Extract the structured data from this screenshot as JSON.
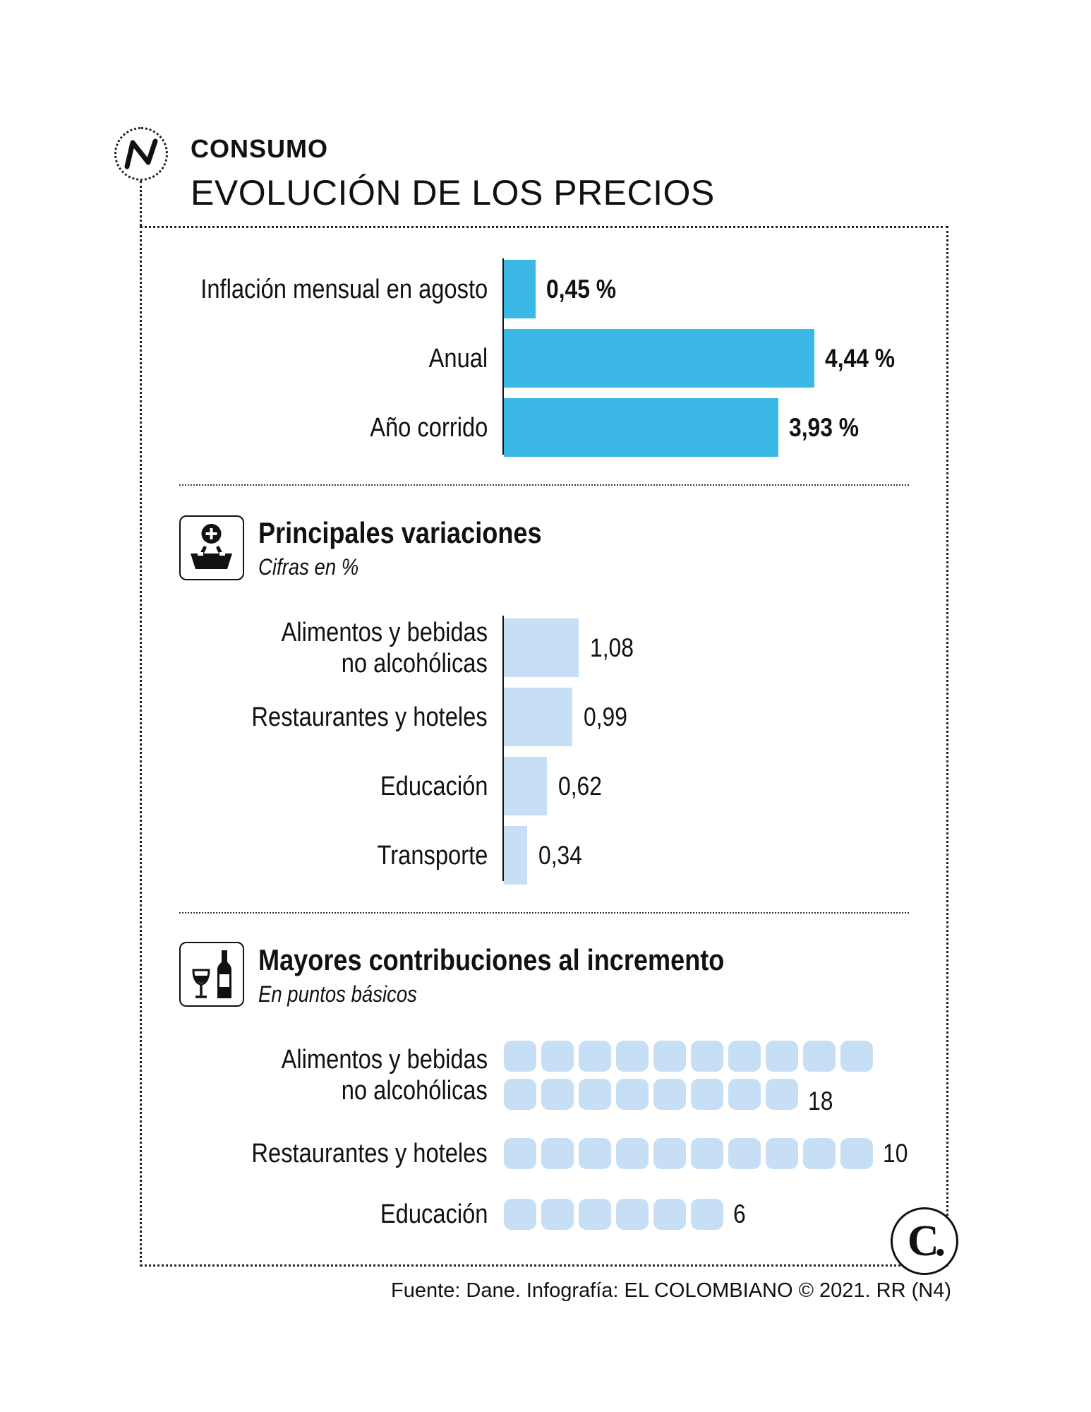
{
  "header": {
    "section": "CONSUMO",
    "title": "EVOLUCIÓN DE LOS PRECIOS"
  },
  "chart_data": [
    {
      "type": "bar",
      "orientation": "horizontal",
      "categories": [
        "Inflación mensual en agosto",
        "Anual",
        "Año corrido"
      ],
      "values": [
        0.45,
        4.44,
        3.93
      ],
      "value_labels": [
        "0,45 %",
        "4,44 %",
        "3,93 %"
      ],
      "color": "#3bb8e5"
    },
    {
      "type": "bar",
      "orientation": "horizontal",
      "title": "Principales variaciones",
      "subtitle": "Cifras en %",
      "categories": [
        "Alimentos y bebidas no alcohólicas",
        "Restaurantes y hoteles",
        "Educación",
        "Transporte"
      ],
      "category_lines": [
        [
          "Alimentos y bebidas",
          "no alcohólicas"
        ],
        [
          "Restaurantes y hoteles"
        ],
        [
          "Educación"
        ],
        [
          "Transporte"
        ]
      ],
      "values": [
        1.08,
        0.99,
        0.62,
        0.34
      ],
      "value_labels": [
        "1,08",
        "0,99",
        "0,62",
        "0,34"
      ],
      "color": "#c6dff4"
    },
    {
      "type": "pictograph",
      "title": "Mayores contribuciones al incremento",
      "subtitle": "En puntos básicos",
      "categories": [
        "Alimentos y bebidas no alcohólicas",
        "Restaurantes y hoteles",
        "Educación"
      ],
      "category_lines": [
        [
          "Alimentos y bebidas",
          "no alcohólicas"
        ],
        [
          "Restaurantes y hoteles"
        ],
        [
          "Educación"
        ]
      ],
      "values": [
        18,
        10,
        6
      ],
      "value_labels": [
        "18",
        "10",
        "6"
      ],
      "units_per_row": 10,
      "color": "#c6dff4"
    }
  ],
  "icons": {
    "header": "trend-line-icon",
    "variaciones": "shopping-basket-icon",
    "contribuciones": "wine-bottle-glass-icon",
    "brand": "el-colombiano-c-logo-icon"
  },
  "brand": {
    "mark": "C."
  },
  "footer": {
    "source": "Fuente: Dane. Infografía: EL COLOMBIANO © 2021. RR (N4)"
  }
}
